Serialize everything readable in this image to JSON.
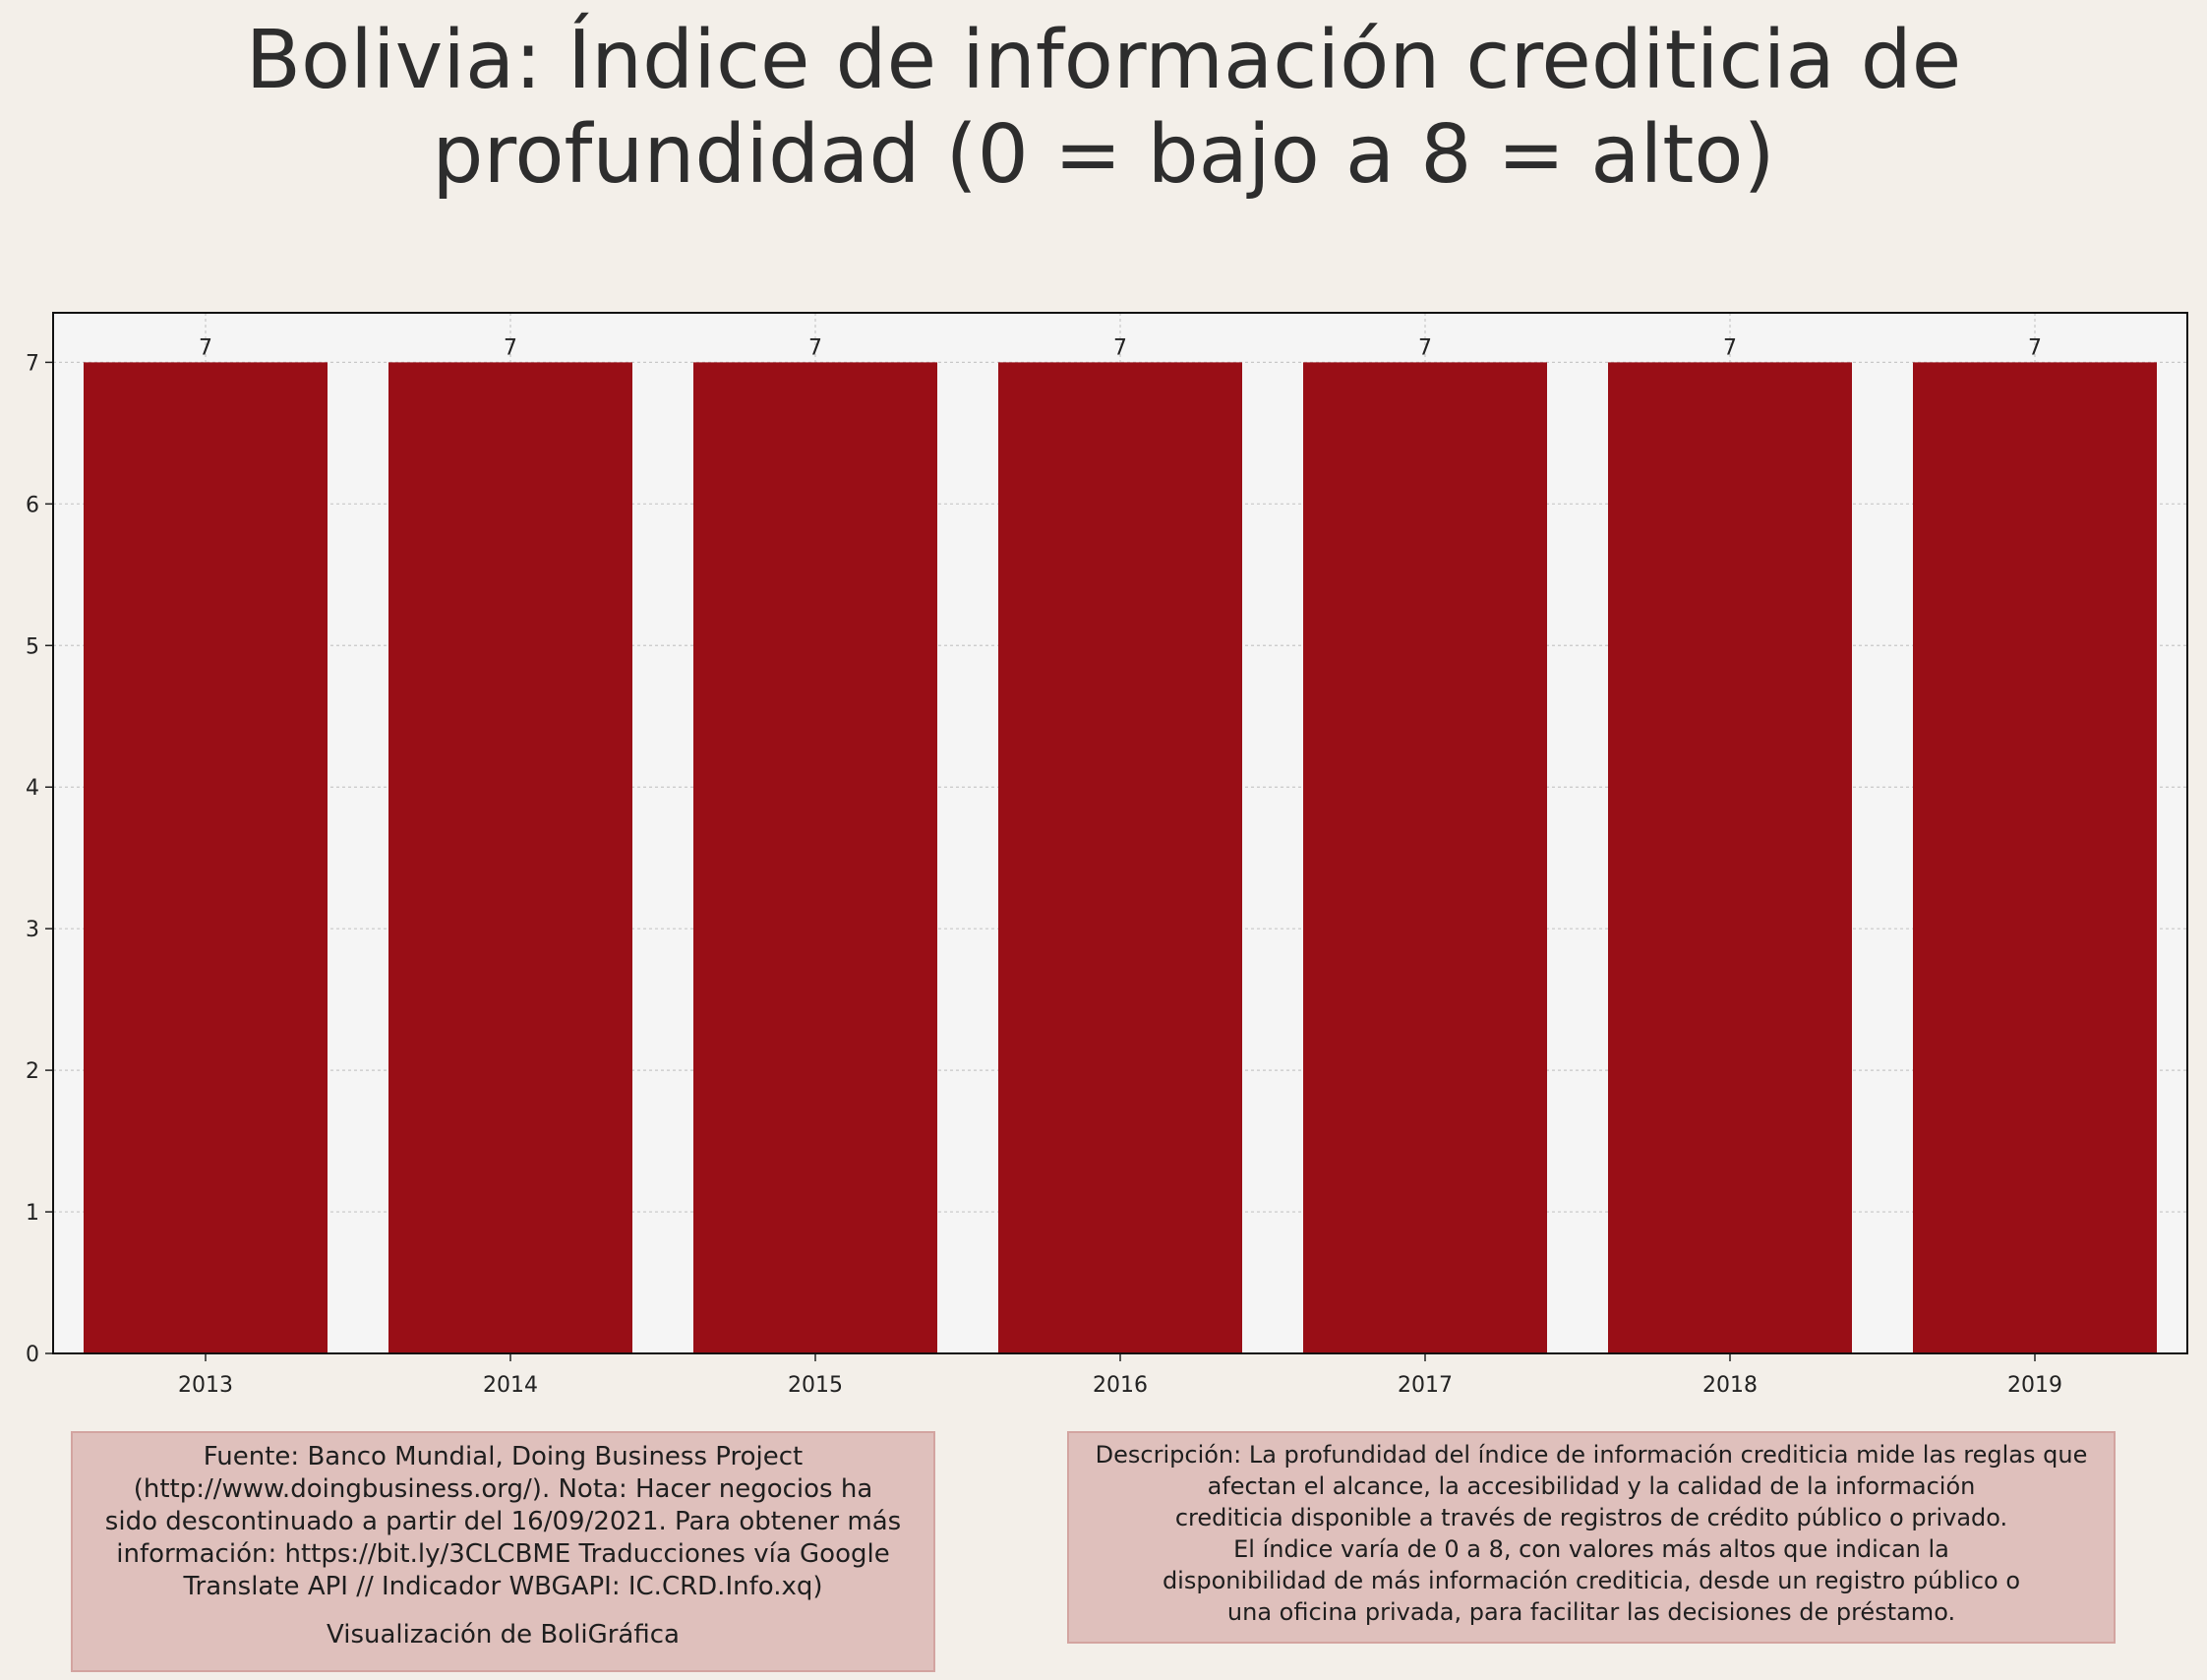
{
  "title_lines": [
    "Bolivia:  Índice de información crediticia de",
    "profundidad (0 = bajo a 8 = alto)"
  ],
  "colors": {
    "bar": "#990e16",
    "plot_bg": "#f5f5f5",
    "page_bg": "#f3efe9",
    "box_bg": "#dfc0bc"
  },
  "chart_data": {
    "type": "bar",
    "title": "Bolivia:  Índice de información crediticia de profundidad (0 = bajo a 8 = alto)",
    "categories": [
      "2013",
      "2014",
      "2015",
      "2016",
      "2017",
      "2018",
      "2019"
    ],
    "values": [
      7,
      7,
      7,
      7,
      7,
      7,
      7
    ],
    "data_labels": [
      "7",
      "7",
      "7",
      "7",
      "7",
      "7",
      "7"
    ],
    "xlabel": "",
    "ylabel": "",
    "ylim": [
      0,
      7.35
    ],
    "yticks": [
      0,
      1,
      2,
      3,
      4,
      5,
      6,
      7
    ],
    "grid": true,
    "legend": "none"
  },
  "source_box": {
    "lines": [
      "Fuente: Banco Mundial, Doing Business Project",
      "(http://www.doingbusiness.org/). Nota: Hacer negocios ha",
      "sido descontinuado a partir del 16/09/2021. Para obtener más",
      "información: https://bit.ly/3CLCBME Traducciones vía Google",
      "Translate API // Indicador WBGAPI: IC.CRD.Info.xq)"
    ],
    "credit": "Visualización de BoliGráfica"
  },
  "description_box": {
    "lines": [
      "Descripción: La profundidad del índice de información crediticia mide las reglas que",
      "afectan el alcance, la accesibilidad y la calidad de la información",
      "crediticia disponible a través de registros de crédito público o privado.",
      "El índice varía de 0 a 8, con valores más altos que indican la",
      "disponibilidad de más información crediticia, desde un registro público o",
      "una oficina privada, para facilitar las decisiones de préstamo."
    ]
  }
}
